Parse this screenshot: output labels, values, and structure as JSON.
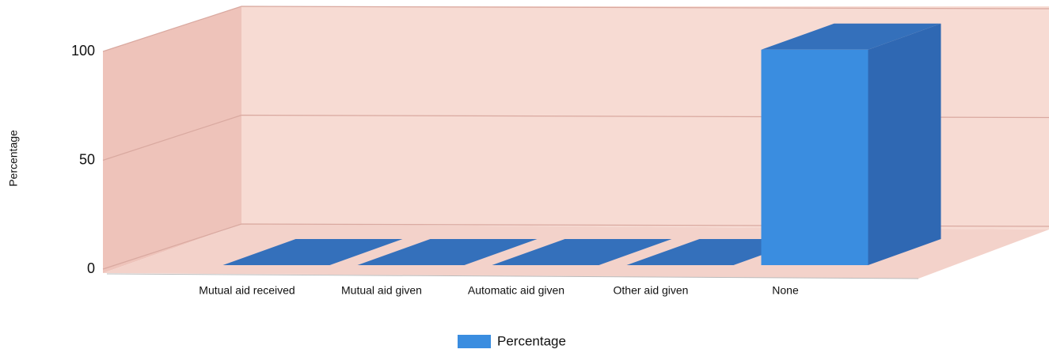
{
  "chart_data": {
    "type": "bar",
    "y_label": "Percentage",
    "categories": [
      "Mutual aid received",
      "Mutual aid given",
      "Automatic aid given",
      "Other aid given",
      "None"
    ],
    "series": [
      {
        "name": "Percentage",
        "color": "#3a8de0",
        "values": [
          0,
          0,
          0,
          0,
          99
        ]
      }
    ],
    "ylim": [
      0,
      100
    ],
    "yticks": [
      0,
      50,
      100
    ],
    "grid": true
  }
}
